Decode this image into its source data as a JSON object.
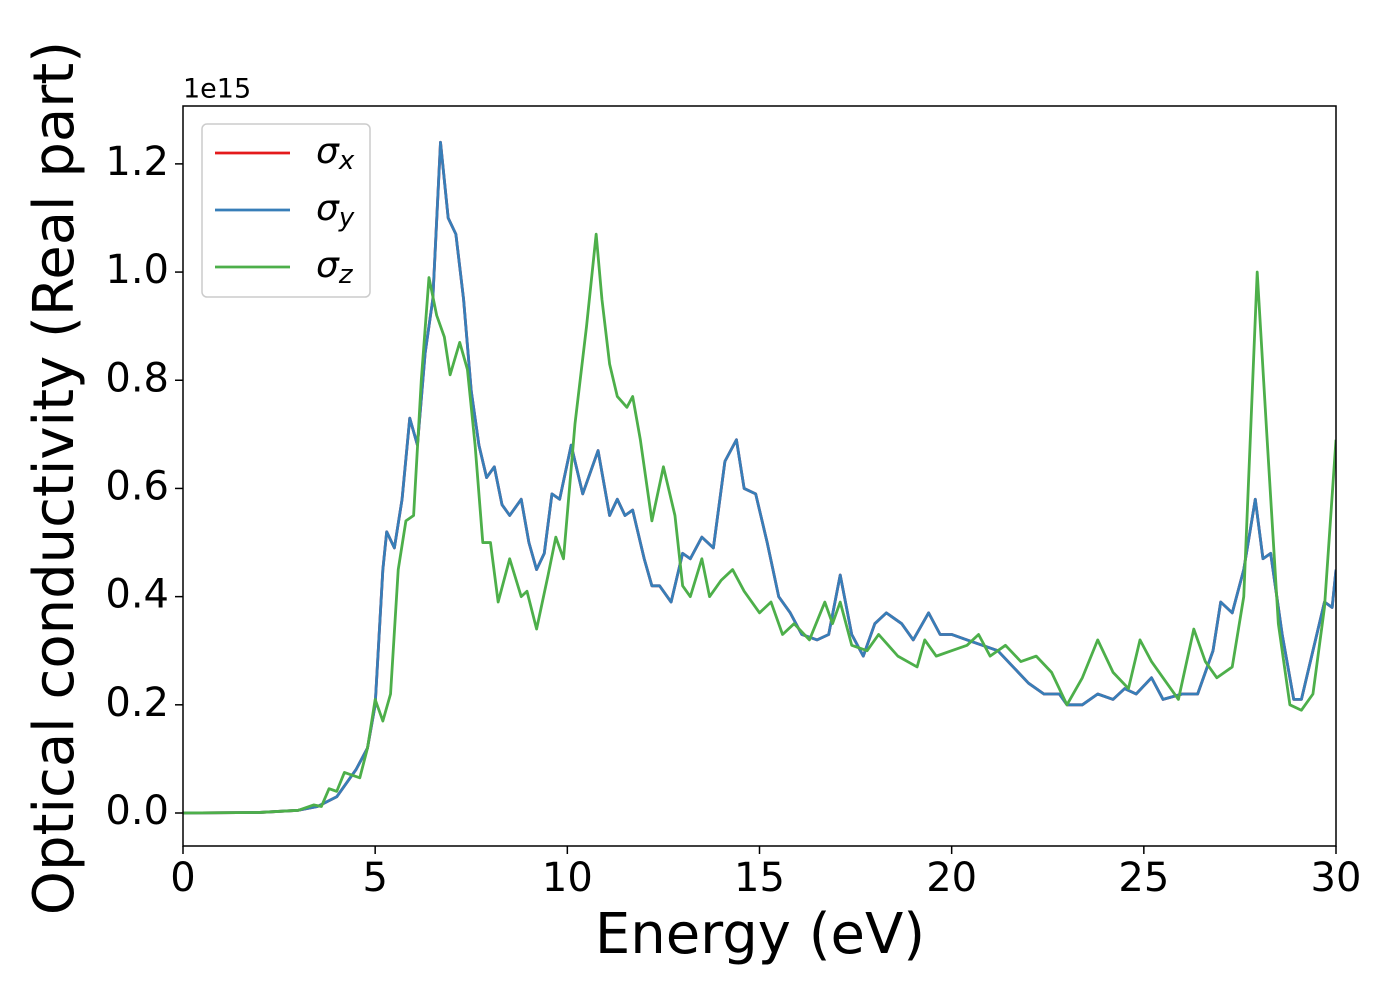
{
  "chart_data": {
    "type": "line",
    "xlabel": "Energy (eV)",
    "ylabel": "Optical conductivity (Real part)",
    "y_offset_label": "1e15",
    "xlim": [
      0,
      30
    ],
    "xticks": [
      0,
      5,
      10,
      15,
      20,
      25,
      30
    ],
    "ylim": [
      -0.061,
      1.307
    ],
    "yticks": [
      {
        "value": 0,
        "label": "0.0"
      },
      0.2,
      0.4,
      0.6,
      0.8,
      {
        "value": 1,
        "label": "1.0"
      },
      1.2
    ],
    "legend": "upper left",
    "series": [
      {
        "name": "σx",
        "color": "#e41a1c",
        "x": [
          0,
          2,
          3,
          3.5,
          4.0,
          4.5,
          4.8,
          5.0,
          5.2,
          5.3,
          5.5,
          5.7,
          5.9,
          6.1,
          6.3,
          6.5,
          6.7,
          6.9,
          7.1,
          7.3,
          7.5,
          7.7,
          7.9,
          8.1,
          8.3,
          8.5,
          8.8,
          9.0,
          9.2,
          9.4,
          9.6,
          9.8,
          10.1,
          10.4,
          10.8,
          11.1,
          11.3,
          11.5,
          11.7,
          12.0,
          12.2,
          12.4,
          12.7,
          13.0,
          13.2,
          13.5,
          13.8,
          14.1,
          14.4,
          14.6,
          14.9,
          15.2,
          15.5,
          15.8,
          16.1,
          16.5,
          16.8,
          17.1,
          17.4,
          17.7,
          18.0,
          18.3,
          18.7,
          19.0,
          19.4,
          19.7,
          20.0,
          20.4,
          20.8,
          21.2,
          21.6,
          22.0,
          22.4,
          22.8,
          23.0,
          23.4,
          23.8,
          24.2,
          24.5,
          24.8,
          25.2,
          25.5,
          26.0,
          26.4,
          26.8,
          27.0,
          27.3,
          27.6,
          27.9,
          28.1,
          28.3,
          28.6,
          28.9,
          29.1,
          29.4,
          29.7,
          29.9,
          30
        ],
        "values": [
          0,
          0.001,
          0.005,
          0.012,
          0.03,
          0.08,
          0.12,
          0.2,
          0.45,
          0.52,
          0.49,
          0.58,
          0.73,
          0.68,
          0.85,
          0.95,
          1.24,
          1.1,
          1.07,
          0.95,
          0.78,
          0.68,
          0.62,
          0.64,
          0.57,
          0.55,
          0.58,
          0.5,
          0.45,
          0.48,
          0.59,
          0.58,
          0.68,
          0.59,
          0.67,
          0.55,
          0.58,
          0.55,
          0.56,
          0.47,
          0.42,
          0.42,
          0.39,
          0.48,
          0.47,
          0.51,
          0.49,
          0.65,
          0.69,
          0.6,
          0.59,
          0.5,
          0.4,
          0.37,
          0.33,
          0.32,
          0.33,
          0.44,
          0.33,
          0.29,
          0.35,
          0.37,
          0.35,
          0.32,
          0.37,
          0.33,
          0.33,
          0.32,
          0.31,
          0.3,
          0.27,
          0.24,
          0.22,
          0.22,
          0.2,
          0.2,
          0.22,
          0.21,
          0.23,
          0.22,
          0.25,
          0.21,
          0.22,
          0.22,
          0.3,
          0.39,
          0.37,
          0.45,
          0.58,
          0.47,
          0.48,
          0.33,
          0.21,
          0.21,
          0.3,
          0.39,
          0.38,
          0.45
        ]
      },
      {
        "name": "σy",
        "color": "#377eb8",
        "x": [
          0,
          2,
          3,
          3.5,
          4.0,
          4.5,
          4.8,
          5.0,
          5.2,
          5.3,
          5.5,
          5.7,
          5.9,
          6.1,
          6.3,
          6.5,
          6.7,
          6.9,
          7.1,
          7.3,
          7.5,
          7.7,
          7.9,
          8.1,
          8.3,
          8.5,
          8.8,
          9.0,
          9.2,
          9.4,
          9.6,
          9.8,
          10.1,
          10.4,
          10.8,
          11.1,
          11.3,
          11.5,
          11.7,
          12.0,
          12.2,
          12.4,
          12.7,
          13.0,
          13.2,
          13.5,
          13.8,
          14.1,
          14.4,
          14.6,
          14.9,
          15.2,
          15.5,
          15.8,
          16.1,
          16.5,
          16.8,
          17.1,
          17.4,
          17.7,
          18.0,
          18.3,
          18.7,
          19.0,
          19.4,
          19.7,
          20.0,
          20.4,
          20.8,
          21.2,
          21.6,
          22.0,
          22.4,
          22.8,
          23.0,
          23.4,
          23.8,
          24.2,
          24.5,
          24.8,
          25.2,
          25.5,
          26.0,
          26.4,
          26.8,
          27.0,
          27.3,
          27.6,
          27.9,
          28.1,
          28.3,
          28.6,
          28.9,
          29.1,
          29.4,
          29.7,
          29.9,
          30
        ],
        "values": [
          0,
          0.001,
          0.005,
          0.012,
          0.03,
          0.08,
          0.12,
          0.2,
          0.45,
          0.52,
          0.49,
          0.58,
          0.73,
          0.68,
          0.85,
          0.95,
          1.24,
          1.1,
          1.07,
          0.95,
          0.78,
          0.68,
          0.62,
          0.64,
          0.57,
          0.55,
          0.58,
          0.5,
          0.45,
          0.48,
          0.59,
          0.58,
          0.68,
          0.59,
          0.67,
          0.55,
          0.58,
          0.55,
          0.56,
          0.47,
          0.42,
          0.42,
          0.39,
          0.48,
          0.47,
          0.51,
          0.49,
          0.65,
          0.69,
          0.6,
          0.59,
          0.5,
          0.4,
          0.37,
          0.33,
          0.32,
          0.33,
          0.44,
          0.33,
          0.29,
          0.35,
          0.37,
          0.35,
          0.32,
          0.37,
          0.33,
          0.33,
          0.32,
          0.31,
          0.3,
          0.27,
          0.24,
          0.22,
          0.22,
          0.2,
          0.2,
          0.22,
          0.21,
          0.23,
          0.22,
          0.25,
          0.21,
          0.22,
          0.22,
          0.3,
          0.39,
          0.37,
          0.45,
          0.58,
          0.47,
          0.48,
          0.33,
          0.21,
          0.21,
          0.3,
          0.39,
          0.38,
          0.45
        ]
      },
      {
        "name": "σz",
        "color": "#4daf4a",
        "x": [
          0,
          2,
          3,
          3.4,
          3.6,
          3.8,
          4.0,
          4.2,
          4.4,
          4.6,
          4.8,
          5.0,
          5.2,
          5.4,
          5.6,
          5.8,
          6.0,
          6.2,
          6.4,
          6.6,
          6.8,
          6.95,
          7.2,
          7.4,
          7.6,
          7.8,
          8.0,
          8.2,
          8.5,
          8.8,
          8.95,
          9.2,
          9.5,
          9.7,
          9.9,
          10.2,
          10.5,
          10.75,
          10.9,
          11.1,
          11.3,
          11.55,
          11.7,
          11.9,
          12.2,
          12.5,
          12.8,
          13.0,
          13.2,
          13.5,
          13.7,
          14.0,
          14.3,
          14.6,
          15.0,
          15.3,
          15.6,
          15.9,
          16.3,
          16.7,
          16.9,
          17.1,
          17.4,
          17.8,
          18.1,
          18.6,
          19.1,
          19.3,
          19.6,
          20.0,
          20.4,
          20.7,
          21.0,
          21.4,
          21.8,
          22.2,
          22.6,
          23.0,
          23.4,
          23.8,
          24.2,
          24.6,
          24.9,
          25.2,
          25.5,
          25.9,
          26.3,
          26.6,
          26.9,
          27.3,
          27.6,
          27.95,
          28.2,
          28.5,
          28.8,
          29.1,
          29.4,
          29.7,
          30
        ],
        "values": [
          0,
          0.001,
          0.005,
          0.015,
          0.012,
          0.045,
          0.04,
          0.075,
          0.07,
          0.065,
          0.12,
          0.21,
          0.17,
          0.22,
          0.45,
          0.54,
          0.55,
          0.8,
          0.99,
          0.92,
          0.88,
          0.81,
          0.87,
          0.82,
          0.68,
          0.5,
          0.5,
          0.39,
          0.47,
          0.4,
          0.41,
          0.34,
          0.44,
          0.51,
          0.47,
          0.72,
          0.9,
          1.07,
          0.95,
          0.83,
          0.77,
          0.75,
          0.77,
          0.69,
          0.54,
          0.64,
          0.55,
          0.42,
          0.4,
          0.47,
          0.4,
          0.43,
          0.45,
          0.41,
          0.37,
          0.39,
          0.33,
          0.35,
          0.32,
          0.39,
          0.35,
          0.39,
          0.31,
          0.3,
          0.33,
          0.29,
          0.27,
          0.32,
          0.29,
          0.3,
          0.31,
          0.33,
          0.29,
          0.31,
          0.28,
          0.29,
          0.26,
          0.2,
          0.25,
          0.32,
          0.26,
          0.23,
          0.32,
          0.28,
          0.25,
          0.21,
          0.34,
          0.28,
          0.25,
          0.27,
          0.4,
          1.0,
          0.7,
          0.35,
          0.2,
          0.19,
          0.22,
          0.38,
          0.69
        ]
      }
    ]
  }
}
